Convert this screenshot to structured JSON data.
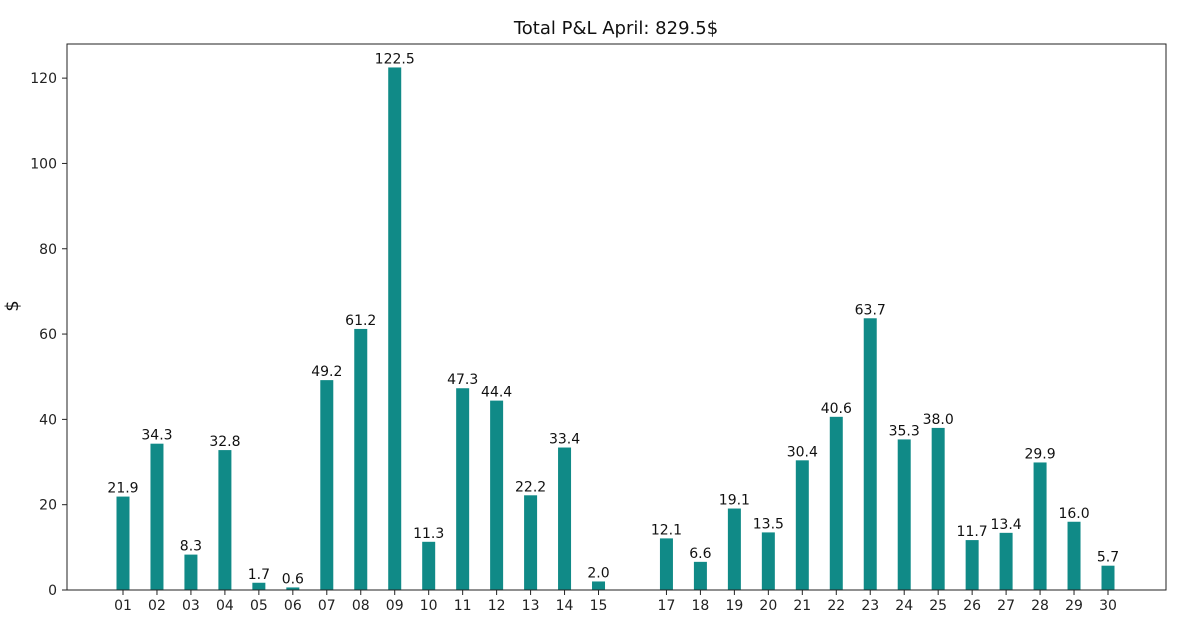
{
  "chart_data": {
    "type": "bar",
    "title": "Total P&L April: 829.5$",
    "xlabel": "",
    "ylabel": "$",
    "ylim": [
      0,
      128
    ],
    "yticks": [
      0,
      20,
      40,
      60,
      80,
      100,
      120
    ],
    "grid": false,
    "bar_color": "#108a87",
    "x": [
      1,
      2,
      3,
      4,
      5,
      6,
      7,
      8,
      9,
      10,
      11,
      12,
      13,
      14,
      15,
      17,
      18,
      19,
      20,
      21,
      22,
      23,
      24,
      25,
      26,
      27,
      28,
      29,
      30
    ],
    "categories": [
      "01",
      "02",
      "03",
      "04",
      "05",
      "06",
      "07",
      "08",
      "09",
      "10",
      "11",
      "12",
      "13",
      "14",
      "15",
      "17",
      "18",
      "19",
      "20",
      "21",
      "22",
      "23",
      "24",
      "25",
      "26",
      "27",
      "28",
      "29",
      "30"
    ],
    "values": [
      21.9,
      34.3,
      8.3,
      32.8,
      1.7,
      0.6,
      49.2,
      61.2,
      122.5,
      11.3,
      47.3,
      44.4,
      22.2,
      33.4,
      2.0,
      12.1,
      6.6,
      19.1,
      13.5,
      30.4,
      40.6,
      63.7,
      35.3,
      38.0,
      11.7,
      13.4,
      29.9,
      16.0,
      5.7
    ],
    "value_labels": [
      "21.9",
      "34.3",
      "8.3",
      "32.8",
      "1.7",
      "0.6",
      "49.2",
      "61.2",
      "122.5",
      "11.3",
      "47.3",
      "44.4",
      "22.2",
      "33.4",
      "2.0",
      "12.1",
      "6.6",
      "19.1",
      "13.5",
      "30.4",
      "40.6",
      "63.7",
      "35.3",
      "38.0",
      "11.7",
      "13.4",
      "29.9",
      "16.0",
      "5.7"
    ]
  }
}
